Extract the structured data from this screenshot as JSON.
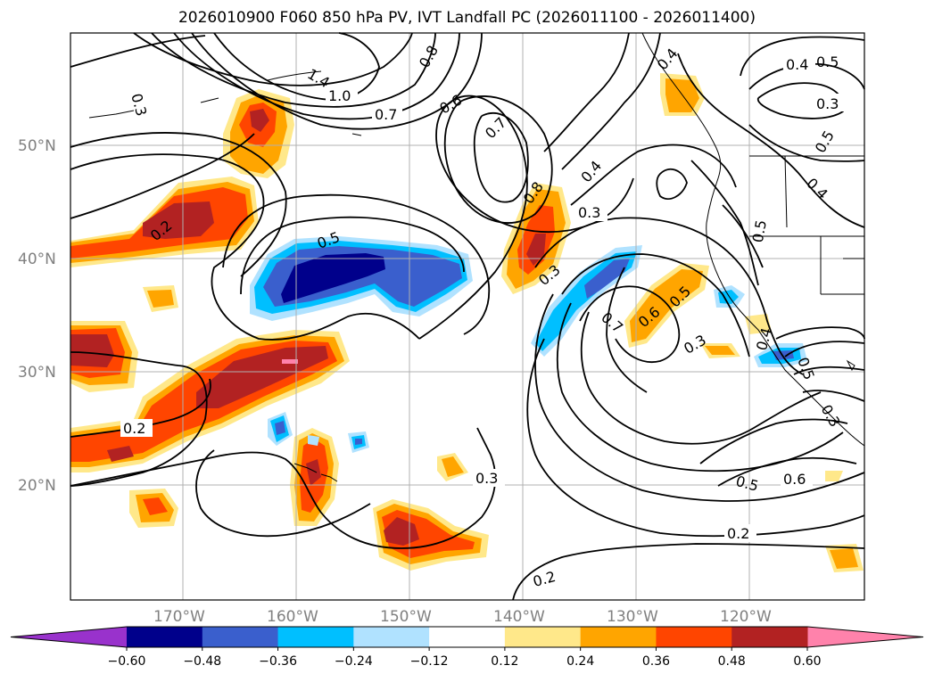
{
  "title": "2026010900 F060 850 hPa PV, IVT Landfall PC (2026011100 - 2026011400)",
  "lat_labels": [
    "50°N",
    "40°N",
    "30°N",
    "20°N"
  ],
  "lon_labels": [
    "170°W",
    "160°W",
    "150°W",
    "140°W",
    "130°W",
    "120°W"
  ],
  "colorbar": {
    "ticks": [
      "−0.60",
      "−0.48",
      "−0.36",
      "−0.24",
      "−0.12",
      "0.12",
      "0.24",
      "0.36",
      "0.48",
      "0.60"
    ],
    "colors": [
      "#9932cc",
      "#00008b",
      "#3a5fcd",
      "#00bfff",
      "#b0e2ff",
      "#ffffff",
      "#ffe88a",
      "#ffa500",
      "#ff4500",
      "#b22222",
      "#ff82ab"
    ]
  },
  "contour_labels": [
    "0.3",
    "1.4",
    "1.0",
    "0.8",
    "0.7",
    "0.6",
    "0.7",
    "0.4",
    "0.4",
    "0.5",
    "0.3",
    "0.5",
    "0.4",
    "0.2",
    "0.5",
    "0.8",
    "0.3",
    "0.4",
    "0.5",
    "0.3",
    "0.6",
    "0.5",
    "0.7",
    "0.3",
    "0.4",
    "0.5",
    "0.3",
    "0.2",
    "0.3",
    "0.5",
    "0.6",
    "0.2",
    "0.2"
  ],
  "colors": {
    "contour": "#000000",
    "grid": "#b0b0b0",
    "frame": "#000000"
  }
}
